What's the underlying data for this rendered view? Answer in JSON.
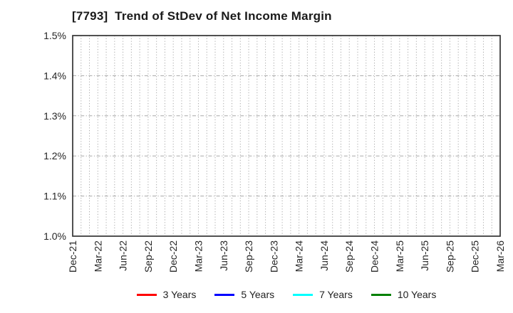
{
  "chart_data": {
    "type": "line",
    "title": "[7793]  Trend of StDev of Net Income Margin",
    "x_tick_labels": [
      "Dec-21",
      "Mar-22",
      "Jun-22",
      "Sep-22",
      "Dec-22",
      "Mar-23",
      "Jun-23",
      "Sep-23",
      "Dec-23",
      "Mar-24",
      "Jun-24",
      "Sep-24",
      "Dec-24",
      "Mar-25",
      "Jun-25",
      "Sep-25",
      "Dec-25",
      "Mar-26"
    ],
    "months_total": 51,
    "months_per_tick": 3,
    "y_ticks": [
      "1.5%",
      "1.4%",
      "1.3%",
      "1.2%",
      "1.1%",
      "1.0%"
    ],
    "ylim": [
      1.0,
      1.5
    ],
    "y_unit": "%",
    "grid": true,
    "legend_position": "bottom",
    "series": [
      {
        "name": "3 Years",
        "color": "#ff0000",
        "values": []
      },
      {
        "name": "5 Years",
        "color": "#0000ff",
        "values": []
      },
      {
        "name": "7 Years",
        "color": "#00ffff",
        "values": []
      },
      {
        "name": "10 Years",
        "color": "#008000",
        "values": []
      }
    ]
  },
  "colors": {
    "spine": "#333333",
    "grid": "#a8a8a8",
    "tick_label": "#262626",
    "title": "#1a1a1a",
    "background": "#ffffff"
  }
}
